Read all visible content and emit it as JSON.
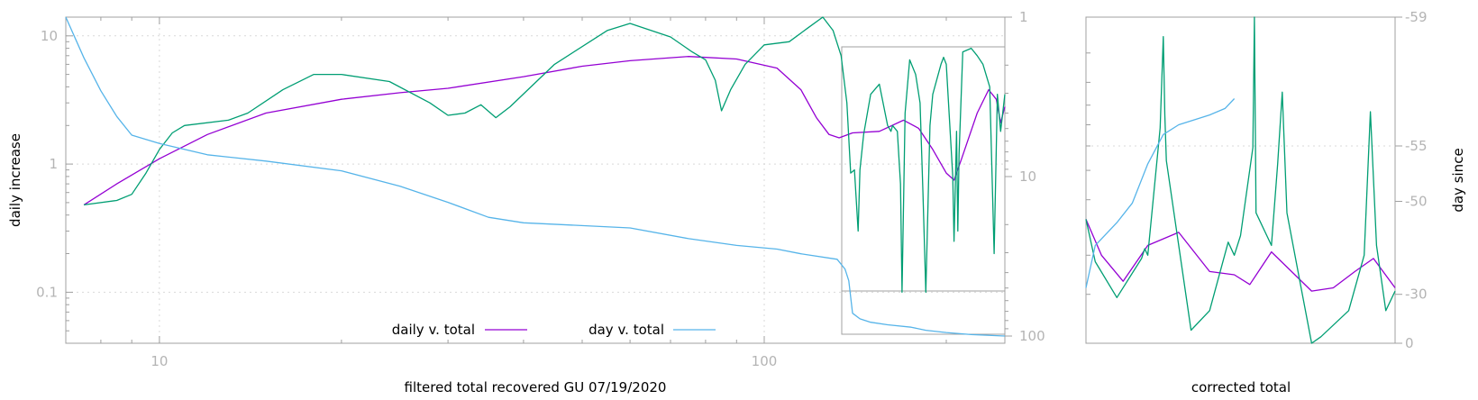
{
  "colors": {
    "daily": "#9400d3",
    "smoothed": "#009e73",
    "day": "#56b4e9",
    "frame": "#a0a0a0",
    "grid": "#d9d9d9",
    "tick_text": "#b4b4b4"
  },
  "chart_data": [
    {
      "type": "line",
      "panel": "main",
      "xscale": "log",
      "yscale": "log",
      "xlim": [
        7,
        250
      ],
      "ylim": [
        0.04,
        14
      ],
      "y2scale": "log",
      "y2lim": [
        1,
        100
      ],
      "y2_reversed": true,
      "xlabel": "filtered total recovered GU 07/19/2020",
      "ylabel": "daily increase",
      "x_ticks": [
        {
          "v": 10,
          "label": "10"
        },
        {
          "v": 100,
          "label": "100"
        }
      ],
      "y_ticks": [
        {
          "v": 0.1,
          "label": "0.1"
        },
        {
          "v": 1,
          "label": "1"
        },
        {
          "v": 10,
          "label": "10"
        }
      ],
      "y2_ticks": [
        {
          "v": 1,
          "label": "1"
        },
        {
          "v": 10,
          "label": "10"
        },
        {
          "v": 100,
          "label": "100"
        }
      ],
      "grid": true,
      "legend_position": "bottom-center",
      "series": [
        {
          "name": "daily v. total",
          "color_key": "daily",
          "axis": "y",
          "points": [
            [
              7.5,
              0.48
            ],
            [
              8.5,
              0.7
            ],
            [
              10,
              1.1
            ],
            [
              12,
              1.7
            ],
            [
              15,
              2.5
            ],
            [
              20,
              3.2
            ],
            [
              25,
              3.6
            ],
            [
              30,
              3.9
            ],
            [
              40,
              4.8
            ],
            [
              50,
              5.8
            ],
            [
              60,
              6.4
            ],
            [
              75,
              6.9
            ],
            [
              90,
              6.6
            ],
            [
              105,
              5.6
            ],
            [
              115,
              3.8
            ],
            [
              122,
              2.3
            ],
            [
              128,
              1.7
            ],
            [
              133,
              1.6
            ],
            [
              140,
              1.75
            ],
            [
              155,
              1.8
            ],
            [
              170,
              2.2
            ],
            [
              180,
              1.9
            ],
            [
              190,
              1.3
            ],
            [
              200,
              0.85
            ],
            [
              206,
              0.75
            ],
            [
              212,
              1.1
            ],
            [
              225,
              2.5
            ],
            [
              235,
              3.8
            ],
            [
              242,
              3.2
            ],
            [
              246,
              2.1
            ],
            [
              250,
              2.8
            ]
          ]
        },
        {
          "name": "",
          "color_key": "smoothed",
          "axis": "y",
          "points": [
            [
              7.5,
              0.48
            ],
            [
              8.5,
              0.52
            ],
            [
              9,
              0.58
            ],
            [
              9.5,
              0.85
            ],
            [
              10,
              1.3
            ],
            [
              10.5,
              1.75
            ],
            [
              11,
              2.0
            ],
            [
              13,
              2.2
            ],
            [
              14,
              2.5
            ],
            [
              16,
              3.8
            ],
            [
              18,
              5.0
            ],
            [
              20,
              5.0
            ],
            [
              24,
              4.4
            ],
            [
              28,
              3.0
            ],
            [
              30,
              2.4
            ],
            [
              32,
              2.5
            ],
            [
              34,
              2.9
            ],
            [
              36,
              2.3
            ],
            [
              38,
              2.8
            ],
            [
              45,
              6.0
            ],
            [
              55,
              11.0
            ],
            [
              60,
              12.5
            ],
            [
              70,
              9.8
            ],
            [
              76,
              7.5
            ],
            [
              80,
              6.5
            ],
            [
              83,
              4.5
            ],
            [
              85,
              2.6
            ],
            [
              88,
              3.8
            ],
            [
              93,
              6.0
            ],
            [
              100,
              8.5
            ],
            [
              110,
              9.0
            ],
            [
              118,
              11.5
            ],
            [
              125,
              14.0
            ],
            [
              130,
              11.0
            ],
            [
              134,
              7.0
            ],
            [
              137,
              3.0
            ],
            [
              139,
              0.85
            ],
            [
              141,
              0.9
            ],
            [
              143,
              0.3
            ],
            [
              144,
              0.9
            ],
            [
              146,
              1.7
            ],
            [
              150,
              3.5
            ],
            [
              155,
              4.2
            ],
            [
              160,
              2.0
            ],
            [
              162,
              1.8
            ],
            [
              163,
              2.0
            ],
            [
              166,
              1.8
            ],
            [
              168,
              0.7
            ],
            [
              169,
              0.1
            ],
            [
              171,
              2.5
            ],
            [
              174,
              6.5
            ],
            [
              178,
              5.0
            ],
            [
              181,
              3.0
            ],
            [
              183,
              0.6
            ],
            [
              185,
              0.1
            ],
            [
              188,
              2.0
            ],
            [
              190,
              3.5
            ],
            [
              196,
              6.0
            ],
            [
              198,
              6.8
            ],
            [
              200,
              6.0
            ],
            [
              205,
              0.8
            ],
            [
              206,
              0.25
            ],
            [
              208,
              1.8
            ],
            [
              209,
              0.3
            ],
            [
              210,
              1.2
            ],
            [
              213,
              7.5
            ],
            [
              220,
              8.0
            ],
            [
              225,
              7.0
            ],
            [
              230,
              6.0
            ],
            [
              236,
              4.0
            ],
            [
              240,
              0.2
            ],
            [
              243,
              3.5
            ],
            [
              246,
              1.8
            ],
            [
              250,
              3.5
            ]
          ]
        },
        {
          "name": "day v. total",
          "color_key": "day",
          "axis": "y2",
          "points": [
            [
              7,
              1
            ],
            [
              7.5,
              1.8
            ],
            [
              8,
              2.9
            ],
            [
              8.5,
              4.2
            ],
            [
              9,
              5.5
            ],
            [
              10,
              6.2
            ],
            [
              12,
              7.3
            ],
            [
              15,
              8.0
            ],
            [
              20,
              9.2
            ],
            [
              25,
              11.5
            ],
            [
              30,
              14.5
            ],
            [
              35,
              18.0
            ],
            [
              40,
              19.5
            ],
            [
              60,
              21.0
            ],
            [
              75,
              24.5
            ],
            [
              90,
              27.0
            ],
            [
              105,
              28.5
            ],
            [
              115,
              30.5
            ],
            [
              132,
              33.0
            ],
            [
              136,
              38.0
            ],
            [
              138,
              45.0
            ],
            [
              140,
              72.0
            ],
            [
              144,
              78.0
            ],
            [
              150,
              82.0
            ],
            [
              160,
              85.0
            ],
            [
              175,
              88.0
            ],
            [
              185,
              92.0
            ],
            [
              200,
              95.0
            ],
            [
              220,
              98.0
            ],
            [
              250,
              100.0
            ]
          ]
        }
      ]
    },
    {
      "type": "line",
      "panel": "inset",
      "xlabel": "corrected total",
      "ylabel": "day since",
      "y2_ticks": [
        {
          "v": -59,
          "label": "-59"
        },
        {
          "v": -55,
          "label": "-55"
        },
        {
          "v": -50,
          "label": "-50"
        },
        {
          "v": -30,
          "label": "-30"
        },
        {
          "v": 0,
          "label": "0"
        }
      ],
      "series": [
        {
          "name": "",
          "color_key": "daily",
          "points": [
            [
              0,
              0.38
            ],
            [
              0.05,
              0.27
            ],
            [
              0.12,
              0.19
            ],
            [
              0.2,
              0.3
            ],
            [
              0.3,
              0.34
            ],
            [
              0.4,
              0.22
            ],
            [
              0.48,
              0.21
            ],
            [
              0.53,
              0.18
            ],
            [
              0.6,
              0.28
            ],
            [
              0.73,
              0.16
            ],
            [
              0.8,
              0.17
            ],
            [
              0.87,
              0.22
            ],
            [
              0.93,
              0.26
            ],
            [
              1,
              0.17
            ]
          ]
        },
        {
          "name": "",
          "color_key": "smoothed",
          "points": [
            [
              0,
              0.38
            ],
            [
              0.03,
              0.25
            ],
            [
              0.1,
              0.14
            ],
            [
              0.18,
              0.26
            ],
            [
              0.19,
              0.29
            ],
            [
              0.2,
              0.27
            ],
            [
              0.24,
              0.66
            ],
            [
              0.25,
              0.94
            ],
            [
              0.255,
              0.7
            ],
            [
              0.26,
              0.56
            ],
            [
              0.3,
              0.3
            ],
            [
              0.34,
              0.04
            ],
            [
              0.4,
              0.1
            ],
            [
              0.46,
              0.31
            ],
            [
              0.48,
              0.27
            ],
            [
              0.5,
              0.33
            ],
            [
              0.54,
              0.6
            ],
            [
              0.545,
              1.0
            ],
            [
              0.55,
              0.4
            ],
            [
              0.6,
              0.3
            ],
            [
              0.62,
              0.55
            ],
            [
              0.635,
              0.77
            ],
            [
              0.65,
              0.4
            ],
            [
              0.66,
              0.35
            ],
            [
              0.7,
              0.15
            ],
            [
              0.73,
              0.0
            ],
            [
              0.76,
              0.02
            ],
            [
              0.85,
              0.1
            ],
            [
              0.9,
              0.27
            ],
            [
              0.92,
              0.71
            ],
            [
              0.94,
              0.3
            ],
            [
              0.97,
              0.1
            ],
            [
              1,
              0.16
            ]
          ]
        },
        {
          "name": "",
          "color_key": "day",
          "points": [
            [
              0,
              0.17
            ],
            [
              0.03,
              0.3
            ],
            [
              0.1,
              0.37
            ],
            [
              0.15,
              0.43
            ],
            [
              0.2,
              0.55
            ],
            [
              0.25,
              0.64
            ],
            [
              0.3,
              0.67
            ],
            [
              0.4,
              0.7
            ],
            [
              0.45,
              0.72
            ],
            [
              0.48,
              0.75
            ]
          ]
        }
      ]
    }
  ]
}
